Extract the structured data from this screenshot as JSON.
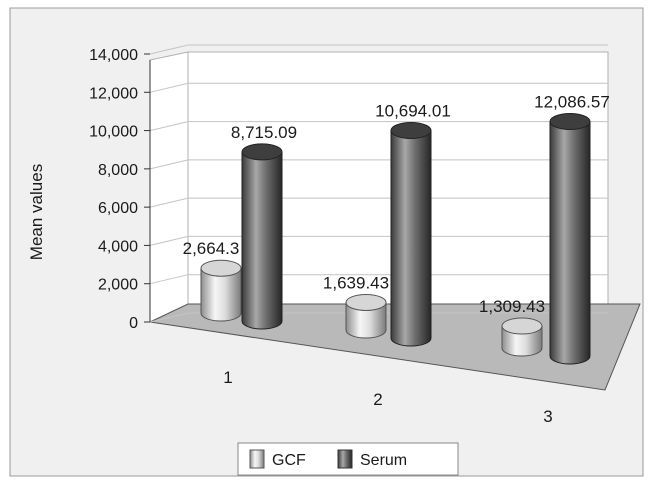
{
  "chart_data": {
    "type": "bar",
    "title": "",
    "xlabel": "",
    "ylabel": "Mean values",
    "ylim": [
      0,
      14000
    ],
    "yticks": [
      "0",
      "2,000",
      "4,000",
      "6,000",
      "8,000",
      "10,000",
      "12,000",
      "14,000"
    ],
    "categories": [
      "1",
      "2",
      "3"
    ],
    "series": [
      {
        "name": "GCF",
        "values": [
          2664.3,
          1639.43,
          1309.43
        ],
        "labels": [
          "2,664.3",
          "1,639.43",
          "1,309.43"
        ],
        "color": "#e0e0e0"
      },
      {
        "name": "Serum",
        "values": [
          8715.09,
          10694.01,
          12086.57
        ],
        "labels": [
          "8,715.09",
          "10,694.01",
          "12,086.57"
        ],
        "color": "#555555"
      }
    ],
    "grid": true,
    "legend": "bottom",
    "style": "3d-cylinder"
  }
}
